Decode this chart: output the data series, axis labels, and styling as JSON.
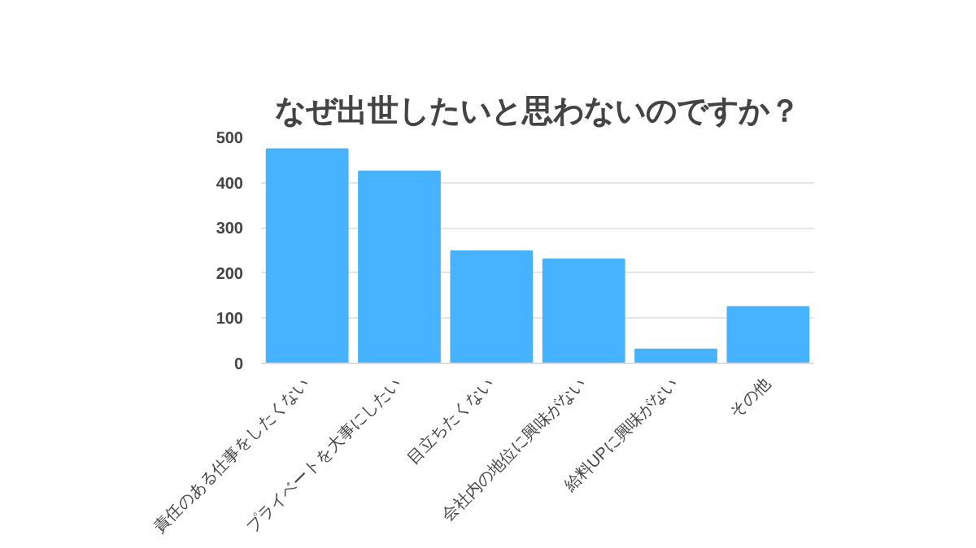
{
  "chart_data": {
    "type": "bar",
    "title": "なぜ出世したいと思わないのですか？",
    "categories": [
      "責任のある仕事をしたくない",
      "プライベートを大事にしたい",
      "目立ちたくない",
      "会社内の地位に興味がない",
      "給料UPに興味がない",
      "その他"
    ],
    "values": [
      474,
      425,
      248,
      230,
      31,
      125
    ],
    "color": "#47b2ff",
    "ylim": [
      0,
      500
    ],
    "yticks": [
      0,
      100,
      200,
      300,
      400,
      500
    ],
    "grid": "y"
  }
}
